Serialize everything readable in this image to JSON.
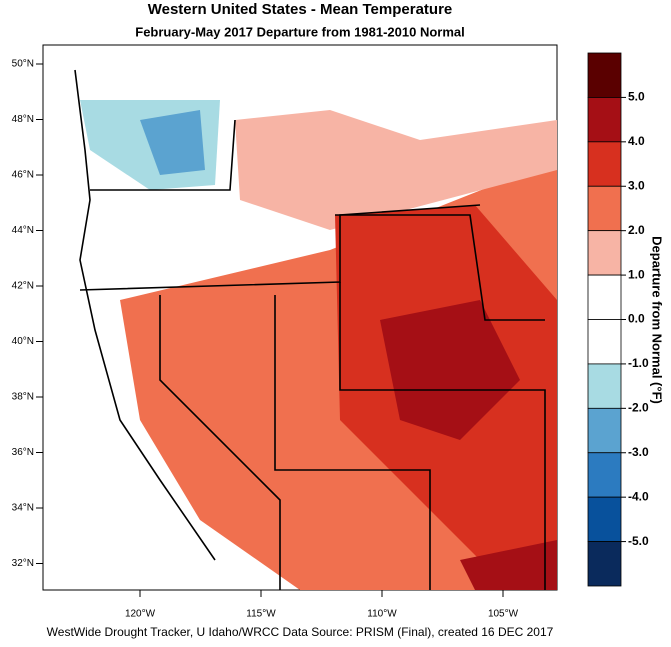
{
  "map": {
    "title": "Western United States - Mean Temperature",
    "subtitle": "February-May 2017  Departure from 1981-2010 Normal",
    "lat_labels": [
      "50°N",
      "48°N",
      "46°N",
      "44°N",
      "42°N",
      "40°N",
      "38°N",
      "36°N",
      "34°N",
      "32°N"
    ],
    "lon_labels": [
      "120°W",
      "115°W",
      "110°W",
      "105°W"
    ],
    "colorbar": {
      "title": "Departure from Normal (°F)",
      "ticks": [
        {
          "value": 5,
          "label": "5.0"
        },
        {
          "value": 4,
          "label": "4.0"
        },
        {
          "value": 3,
          "label": "3.0"
        },
        {
          "value": 2,
          "label": "2.0"
        },
        {
          "value": 1,
          "label": "1.0"
        },
        {
          "value": 0,
          "label": "0.0"
        },
        {
          "value": -1,
          "label": "-1.0"
        },
        {
          "value": -2,
          "label": "-2.0"
        },
        {
          "value": -3,
          "label": "-3.0"
        },
        {
          "value": -4,
          "label": "-4.0"
        },
        {
          "value": -5,
          "label": "-5.0"
        }
      ],
      "colors": [
        "#5a0000",
        "#a50f15",
        "#d7301f",
        "#f0704f",
        "#f7b4a5",
        "#ffffff",
        "#ffffff",
        "#a8dbe3",
        "#5ba3d0",
        "#2c7bc0",
        "#08519c",
        "#0a2a5c"
      ]
    },
    "footer": "WestWide Drought Tracker, U Idaho/WRCC Data Source: PRISM (Final), created 16 DEC 2017"
  }
}
